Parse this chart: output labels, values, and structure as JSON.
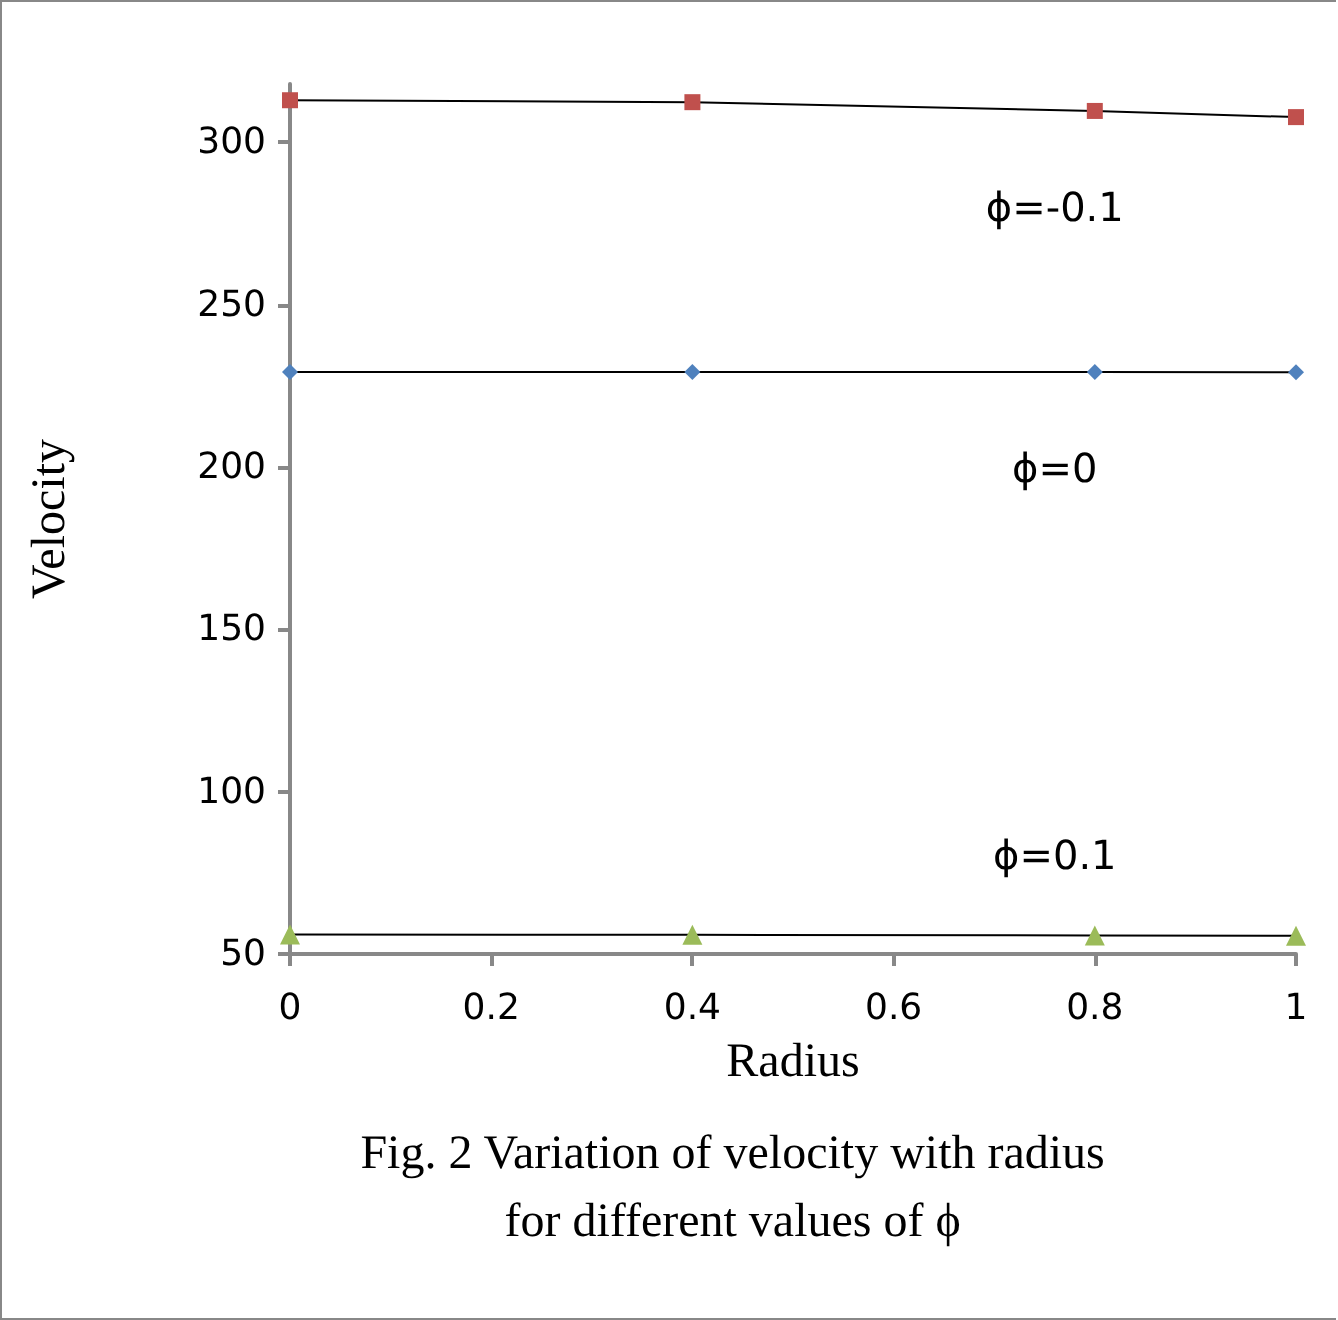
{
  "chart_data": {
    "type": "line",
    "xlabel": "Radius",
    "ylabel": "Velocity",
    "x": [
      0,
      0.4,
      0.8,
      1
    ],
    "series": [
      {
        "name": "ϕ=-0.1",
        "color": "#c0504d",
        "marker": "square",
        "values": [
          313,
          312.4,
          309.7,
          307.8
        ]
      },
      {
        "name": "ϕ=0",
        "color": "#4f81bd",
        "marker": "diamond",
        "values": [
          229.3,
          229.3,
          229.3,
          229.2
        ]
      },
      {
        "name": "ϕ=0.1",
        "color": "#9bbb59",
        "marker": "triangle",
        "values": [
          56,
          55.9,
          55.7,
          55.6
        ]
      }
    ],
    "annotations": [
      "Fig. 2 Variation of velocity with radius\nfor different values of ϕ"
    ],
    "xlim": [
      0,
      1
    ],
    "xticks": [
      0,
      0.2,
      0.4,
      0.6,
      0.8,
      1
    ],
    "ylim": [
      50,
      318
    ],
    "yticks": [
      50,
      100,
      150,
      200,
      250,
      300
    ],
    "grid": false
  }
}
